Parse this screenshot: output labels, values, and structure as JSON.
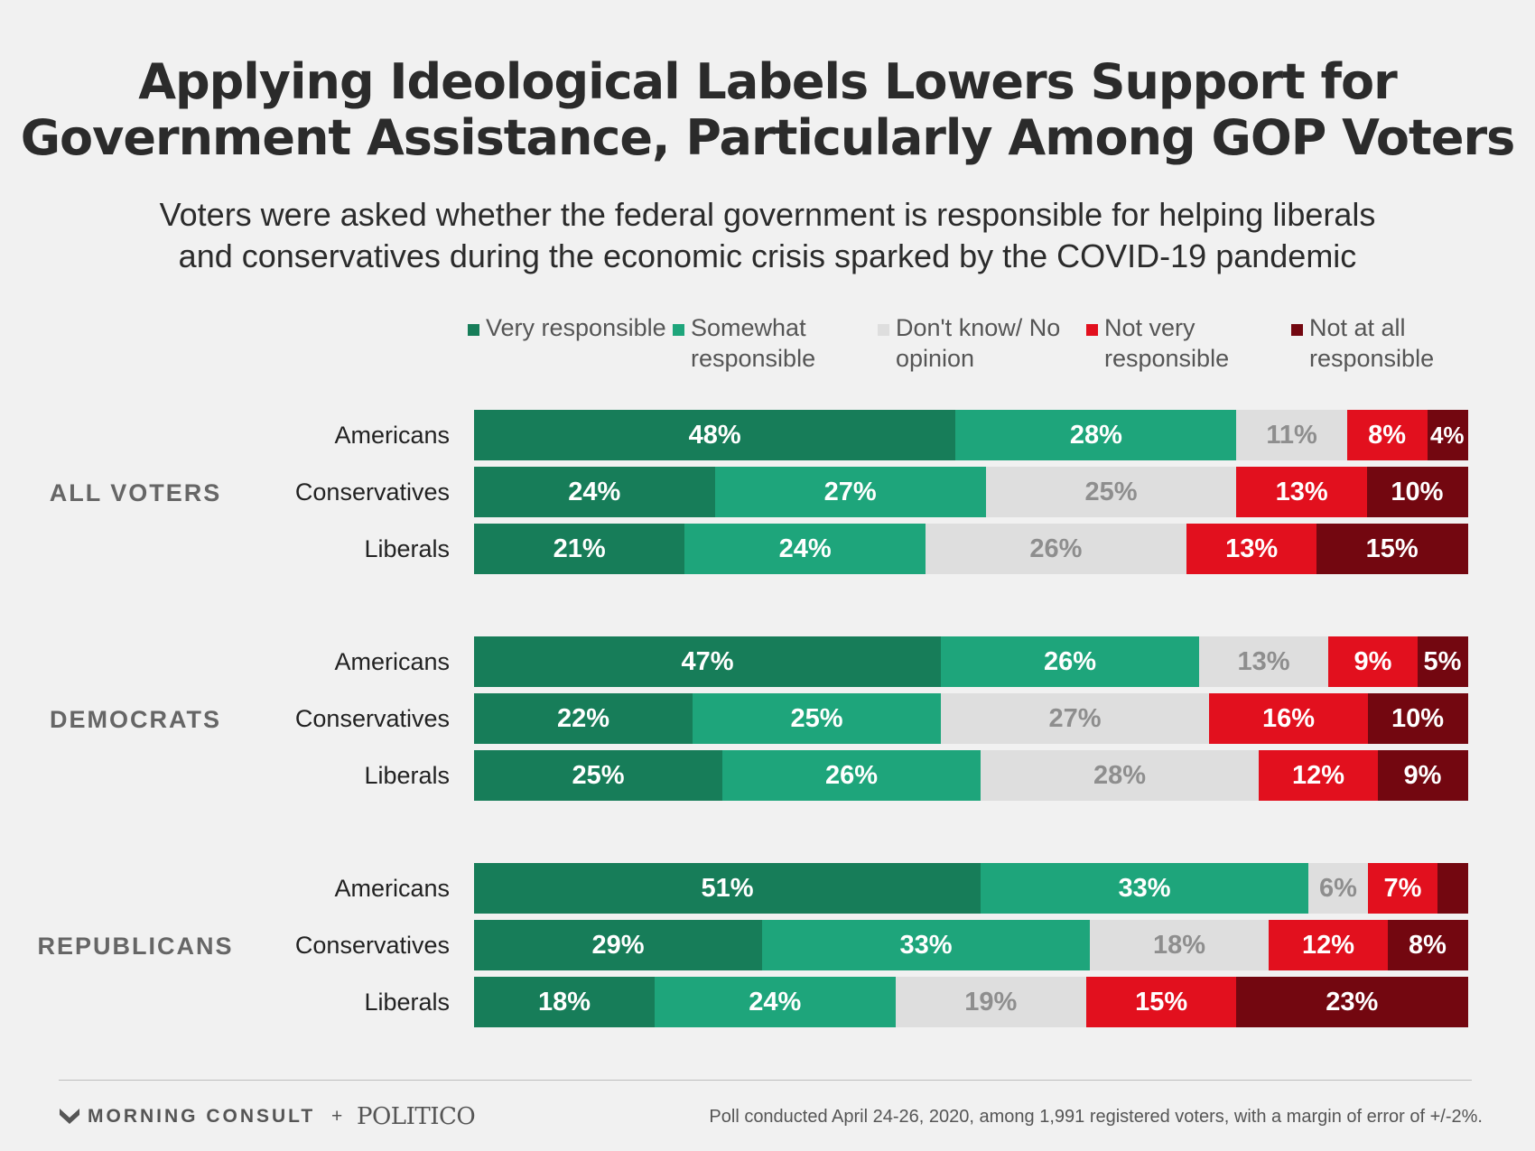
{
  "title_line1": "Applying Ideological Labels Lowers Support for",
  "title_line2": "Government Assistance, Particularly Among GOP Voters",
  "subtitle_line1": "Voters were asked whether the federal government is responsible for helping liberals",
  "subtitle_line2": "and conservatives during the economic crisis sparked by the COVID-19 pandemic",
  "footer": {
    "brand": "MORNING CONSULT",
    "plus": "+",
    "partner": "POLITICO",
    "note": "Poll conducted April 24-26, 2020, among 1,991 registered voters, with a margin of error of +/-2%."
  },
  "chart_data": {
    "type": "bar",
    "orientation": "horizontal",
    "stacked": true,
    "xlim": [
      0,
      100
    ],
    "legend_position": "top",
    "series": [
      {
        "name": "Very responsible",
        "color": "#177d59",
        "label_color": "#ffffff"
      },
      {
        "name": "Somewhat responsible",
        "color": "#1ea57b",
        "label_color": "#ffffff"
      },
      {
        "name": "Don't know/ No opinion",
        "color": "#dedede",
        "label_color": "#8e8e8e"
      },
      {
        "name": "Not very responsible",
        "color": "#e2101e",
        "label_color": "#ffffff"
      },
      {
        "name": "Not at all responsible",
        "color": "#730710",
        "label_color": "#ffffff"
      }
    ],
    "groups": [
      {
        "name": "ALL VOTERS",
        "rows": [
          {
            "label": "Americans",
            "values": [
              48,
              28,
              11,
              8,
              4
            ],
            "labels": [
              "48%",
              "28%",
              "11%",
              "8%",
              "4%"
            ]
          },
          {
            "label": "Conservatives",
            "values": [
              24,
              27,
              25,
              13,
              10
            ],
            "labels": [
              "24%",
              "27%",
              "25%",
              "13%",
              "10%"
            ]
          },
          {
            "label": "Liberals",
            "values": [
              21,
              24,
              26,
              13,
              15
            ],
            "labels": [
              "21%",
              "24%",
              "26%",
              "13%",
              "15%"
            ]
          }
        ]
      },
      {
        "name": "DEMOCRATS",
        "rows": [
          {
            "label": "Americans",
            "values": [
              47,
              26,
              13,
              9,
              5
            ],
            "labels": [
              "47%",
              "26%",
              "13%",
              "9%",
              "5%"
            ]
          },
          {
            "label": "Conservatives",
            "values": [
              22,
              25,
              27,
              16,
              10
            ],
            "labels": [
              "22%",
              "25%",
              "27%",
              "16%",
              "10%"
            ]
          },
          {
            "label": "Liberals",
            "values": [
              25,
              26,
              28,
              12,
              9
            ],
            "labels": [
              "25%",
              "26%",
              "28%",
              "12%",
              "9%"
            ]
          }
        ]
      },
      {
        "name": "REPUBLICANS",
        "rows": [
          {
            "label": "Americans",
            "values": [
              51,
              33,
              6,
              7,
              3
            ],
            "labels": [
              "51%",
              "33%",
              "6%",
              "7%",
              ""
            ]
          },
          {
            "label": "Conservatives",
            "values": [
              29,
              33,
              18,
              12,
              8
            ],
            "labels": [
              "29%",
              "33%",
              "18%",
              "12%",
              "8%"
            ]
          },
          {
            "label": "Liberals",
            "values": [
              18,
              24,
              19,
              15,
              23
            ],
            "labels": [
              "18%",
              "24%",
              "19%",
              "15%",
              "23%"
            ]
          }
        ]
      }
    ]
  }
}
